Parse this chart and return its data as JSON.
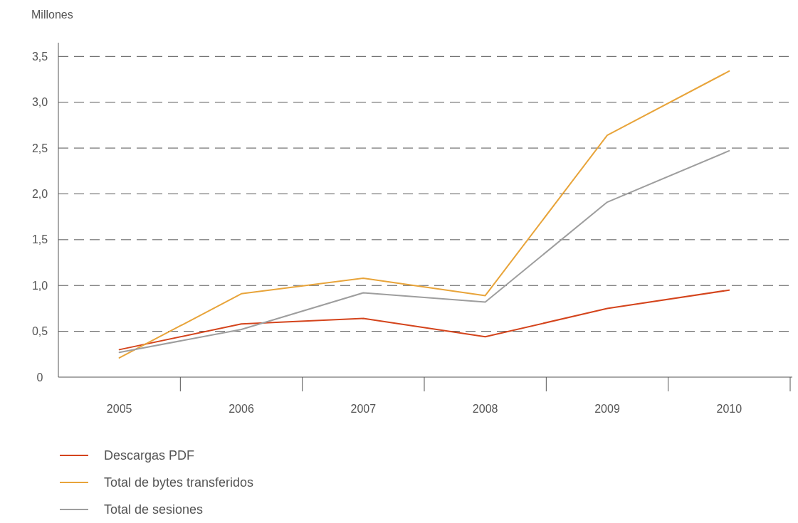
{
  "chart_data": {
    "type": "line",
    "ylabel": "Millones",
    "categories": [
      "2005",
      "2006",
      "2007",
      "2008",
      "2009",
      "2010"
    ],
    "series": [
      {
        "name": "Descargas PDF",
        "color": "#d4441c",
        "values": [
          0.3,
          0.58,
          0.64,
          0.44,
          0.75,
          0.95
        ]
      },
      {
        "name": "Total de bytes transferidos",
        "color": "#e8a43a",
        "values": [
          0.21,
          0.91,
          1.08,
          0.89,
          2.64,
          3.34
        ]
      },
      {
        "name": "Total de sesiones",
        "color": "#9e9e9e",
        "values": [
          0.27,
          0.52,
          0.92,
          0.82,
          1.91,
          2.47
        ]
      }
    ],
    "ylim": [
      0,
      3.65
    ],
    "yticks": [
      0,
      {
        "value": 0.5,
        "label": "0,5"
      },
      {
        "value": 1,
        "label": "1,0"
      },
      {
        "value": 1.5,
        "label": "1,5"
      },
      {
        "value": 2,
        "label": "2,0"
      },
      {
        "value": 2.5,
        "label": "2,5"
      },
      {
        "value": 3,
        "label": "3,0"
      },
      {
        "value": 3.5,
        "label": "3,5"
      }
    ],
    "grid": "y",
    "legend": "bottom left",
    "marker": "none",
    "line_style": "solid"
  }
}
